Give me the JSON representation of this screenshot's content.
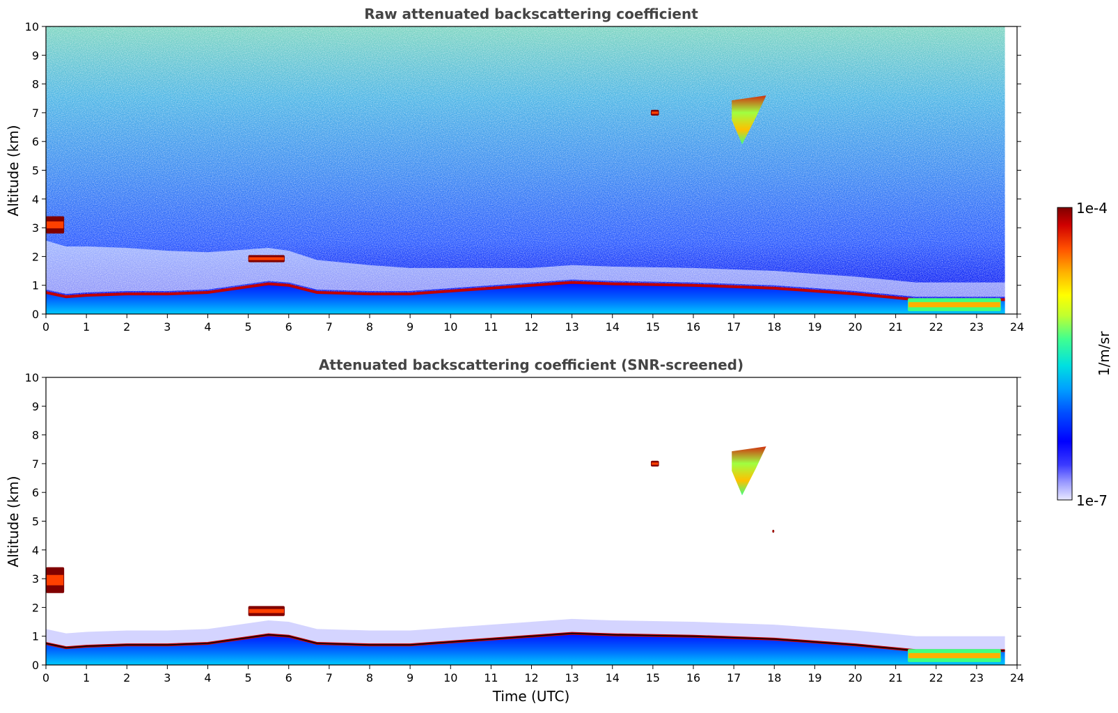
{
  "chart_data": [
    {
      "type": "heatmap",
      "title": "Raw attenuated backscattering coefficient",
      "xlabel": "",
      "ylabel": "Altitude (km)",
      "xlim": [
        0,
        24
      ],
      "ylim": [
        0,
        10
      ],
      "xticks": [
        "0",
        "1",
        "2",
        "3",
        "4",
        "5",
        "6",
        "7",
        "8",
        "9",
        "10",
        "11",
        "12",
        "13",
        "14",
        "15",
        "16",
        "17",
        "18",
        "19",
        "20",
        "21",
        "22",
        "23",
        "24"
      ],
      "yticks": [
        "0",
        "1",
        "2",
        "3",
        "4",
        "5",
        "6",
        "7",
        "8",
        "9",
        "10"
      ],
      "data_extent_hours": [
        0,
        23.7
      ],
      "boundary_layer_top_km": [
        [
          0,
          0.75
        ],
        [
          0.5,
          0.6
        ],
        [
          1,
          0.65
        ],
        [
          2,
          0.7
        ],
        [
          3,
          0.7
        ],
        [
          4,
          0.75
        ],
        [
          5,
          0.95
        ],
        [
          5.5,
          1.05
        ],
        [
          6,
          1.0
        ],
        [
          6.7,
          0.75
        ],
        [
          8,
          0.7
        ],
        [
          9,
          0.7
        ],
        [
          10,
          0.8
        ],
        [
          11,
          0.9
        ],
        [
          12,
          1.0
        ],
        [
          13,
          1.1
        ],
        [
          14,
          1.05
        ],
        [
          16,
          1.0
        ],
        [
          18,
          0.9
        ],
        [
          20,
          0.7
        ],
        [
          21.5,
          0.5
        ],
        [
          23.7,
          0.5
        ]
      ],
      "features": [
        {
          "time": [
            0,
            0.45
          ],
          "alt_km": [
            2.8,
            3.4
          ],
          "level": "high"
        },
        {
          "time": [
            5.0,
            5.9
          ],
          "alt_km": [
            1.8,
            2.05
          ],
          "level": "high"
        },
        {
          "time": [
            14.95,
            15.15
          ],
          "alt_km": [
            6.9,
            7.1
          ],
          "level": "high"
        },
        {
          "time": [
            16.95,
            17.8
          ],
          "alt_km": [
            5.9,
            7.6
          ],
          "level": "moderate"
        },
        {
          "time": [
            21.3,
            23.6
          ],
          "alt_km": [
            0.1,
            0.55
          ],
          "level": "moderate"
        }
      ]
    },
    {
      "type": "heatmap",
      "title": "Attenuated backscattering coefficient (SNR-screened)",
      "xlabel": "Time (UTC)",
      "ylabel": "Altitude (km)",
      "xlim": [
        0,
        24
      ],
      "ylim": [
        0,
        10
      ],
      "xticks": [
        "0",
        "1",
        "2",
        "3",
        "4",
        "5",
        "6",
        "7",
        "8",
        "9",
        "10",
        "11",
        "12",
        "13",
        "14",
        "15",
        "16",
        "17",
        "18",
        "19",
        "20",
        "21",
        "22",
        "23",
        "24"
      ],
      "yticks": [
        "0",
        "1",
        "2",
        "3",
        "4",
        "5",
        "6",
        "7",
        "8",
        "9",
        "10"
      ],
      "data_extent_hours": [
        0,
        23.7
      ],
      "boundary_layer_top_km": [
        [
          0,
          0.75
        ],
        [
          0.5,
          0.6
        ],
        [
          1,
          0.65
        ],
        [
          2,
          0.7
        ],
        [
          3,
          0.7
        ],
        [
          4,
          0.75
        ],
        [
          5,
          0.95
        ],
        [
          5.5,
          1.05
        ],
        [
          6,
          1.0
        ],
        [
          6.7,
          0.75
        ],
        [
          8,
          0.7
        ],
        [
          9,
          0.7
        ],
        [
          10,
          0.8
        ],
        [
          11,
          0.9
        ],
        [
          12,
          1.0
        ],
        [
          13,
          1.1
        ],
        [
          14,
          1.05
        ],
        [
          16,
          1.0
        ],
        [
          18,
          0.9
        ],
        [
          20,
          0.7
        ],
        [
          21.5,
          0.5
        ],
        [
          23.7,
          0.5
        ]
      ],
      "features": [
        {
          "time": [
            0,
            0.45
          ],
          "alt_km": [
            2.5,
            3.4
          ],
          "level": "high"
        },
        {
          "time": [
            5.0,
            5.9
          ],
          "alt_km": [
            1.7,
            2.05
          ],
          "level": "high"
        },
        {
          "time": [
            14.95,
            15.15
          ],
          "alt_km": [
            6.9,
            7.1
          ],
          "level": "high"
        },
        {
          "time": [
            16.95,
            17.8
          ],
          "alt_km": [
            5.9,
            7.6
          ],
          "level": "moderate"
        },
        {
          "time": [
            17.95,
            18.0
          ],
          "alt_km": [
            4.6,
            4.7
          ],
          "level": "high"
        },
        {
          "time": [
            21.3,
            23.6
          ],
          "alt_km": [
            0.1,
            0.55
          ],
          "level": "moderate"
        }
      ]
    }
  ],
  "colorbar": {
    "max_label": "1e-4",
    "min_label": "1e-7",
    "unit_label": "1/m/sr",
    "colors": [
      "#e8e8ff",
      "#9a9aff",
      "#3b3bff",
      "#0000ff",
      "#0050ff",
      "#00a0ff",
      "#00e0e0",
      "#40ff90",
      "#c0ff30",
      "#ffff00",
      "#ffb000",
      "#ff5000",
      "#d00000",
      "#800000"
    ]
  }
}
